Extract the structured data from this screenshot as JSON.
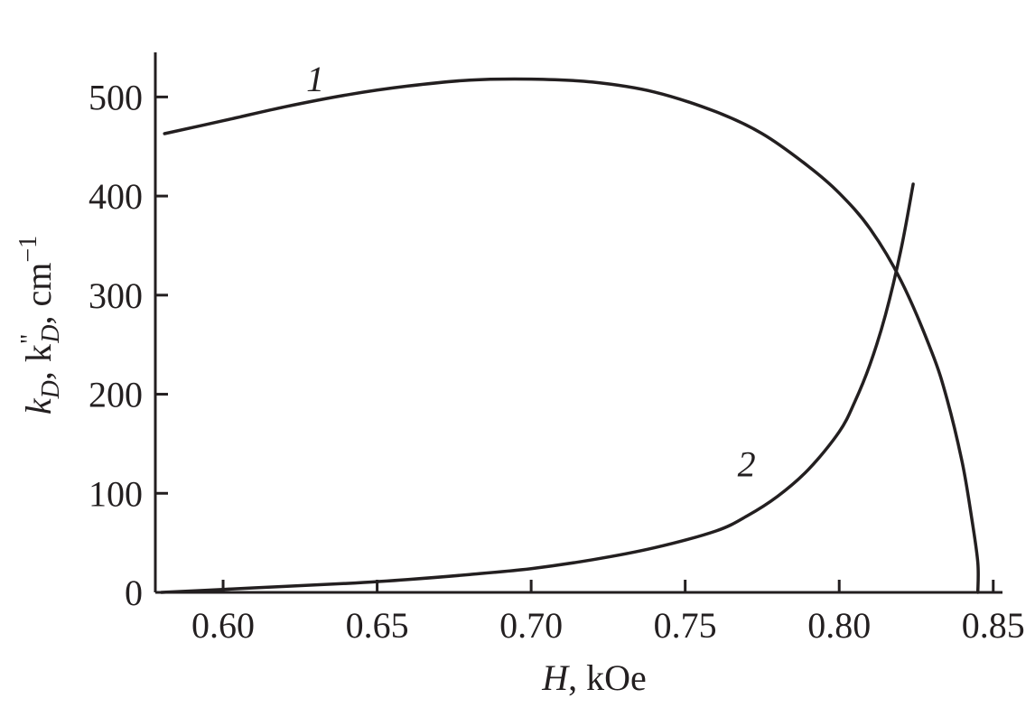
{
  "chart_data": {
    "type": "line",
    "xlabel": {
      "var": "H",
      "unit": ", kOe"
    },
    "ylabel": {
      "k1": "k",
      "sub1": "D",
      "k2": ", k",
      "prime": "\"",
      "sub2": "D",
      "unit": ", cm",
      "exp": "−1"
    },
    "xlim": [
      0.578,
      0.853
    ],
    "ylim": [
      0,
      545
    ],
    "x_ticks": [
      0.6,
      0.65,
      0.7,
      0.75,
      0.8,
      0.85
    ],
    "x_tick_labels": [
      "0.60",
      "0.65",
      "0.70",
      "0.75",
      "0.80",
      "0.85"
    ],
    "y_ticks": [
      0,
      100,
      200,
      300,
      400,
      500
    ],
    "y_tick_labels": [
      "0",
      "100",
      "200",
      "300",
      "400",
      "500"
    ],
    "series": [
      {
        "name": "1",
        "label_at": [
          0.627,
          506
        ],
        "x": [
          0.581,
          0.6,
          0.62,
          0.64,
          0.66,
          0.68,
          0.7,
          0.72,
          0.74,
          0.76,
          0.775,
          0.79,
          0.8,
          0.81,
          0.82,
          0.83,
          0.835,
          0.84,
          0.843,
          0.845,
          0.845
        ],
        "y": [
          463,
          476,
          490,
          502,
          511,
          517,
          518,
          515,
          505,
          485,
          463,
          430,
          403,
          367,
          315,
          243,
          195,
          130,
          75,
          30,
          0
        ]
      },
      {
        "name": "2",
        "label_at": [
          0.767,
          117
        ],
        "x": [
          0.58,
          0.6,
          0.62,
          0.64,
          0.66,
          0.68,
          0.7,
          0.72,
          0.74,
          0.76,
          0.77,
          0.78,
          0.79,
          0.8,
          0.805,
          0.81,
          0.815,
          0.82,
          0.824
        ],
        "y": [
          0,
          3,
          6,
          9,
          13,
          18,
          24,
          33,
          45,
          62,
          77,
          97,
          124,
          162,
          192,
          230,
          280,
          345,
          412
        ]
      }
    ]
  }
}
